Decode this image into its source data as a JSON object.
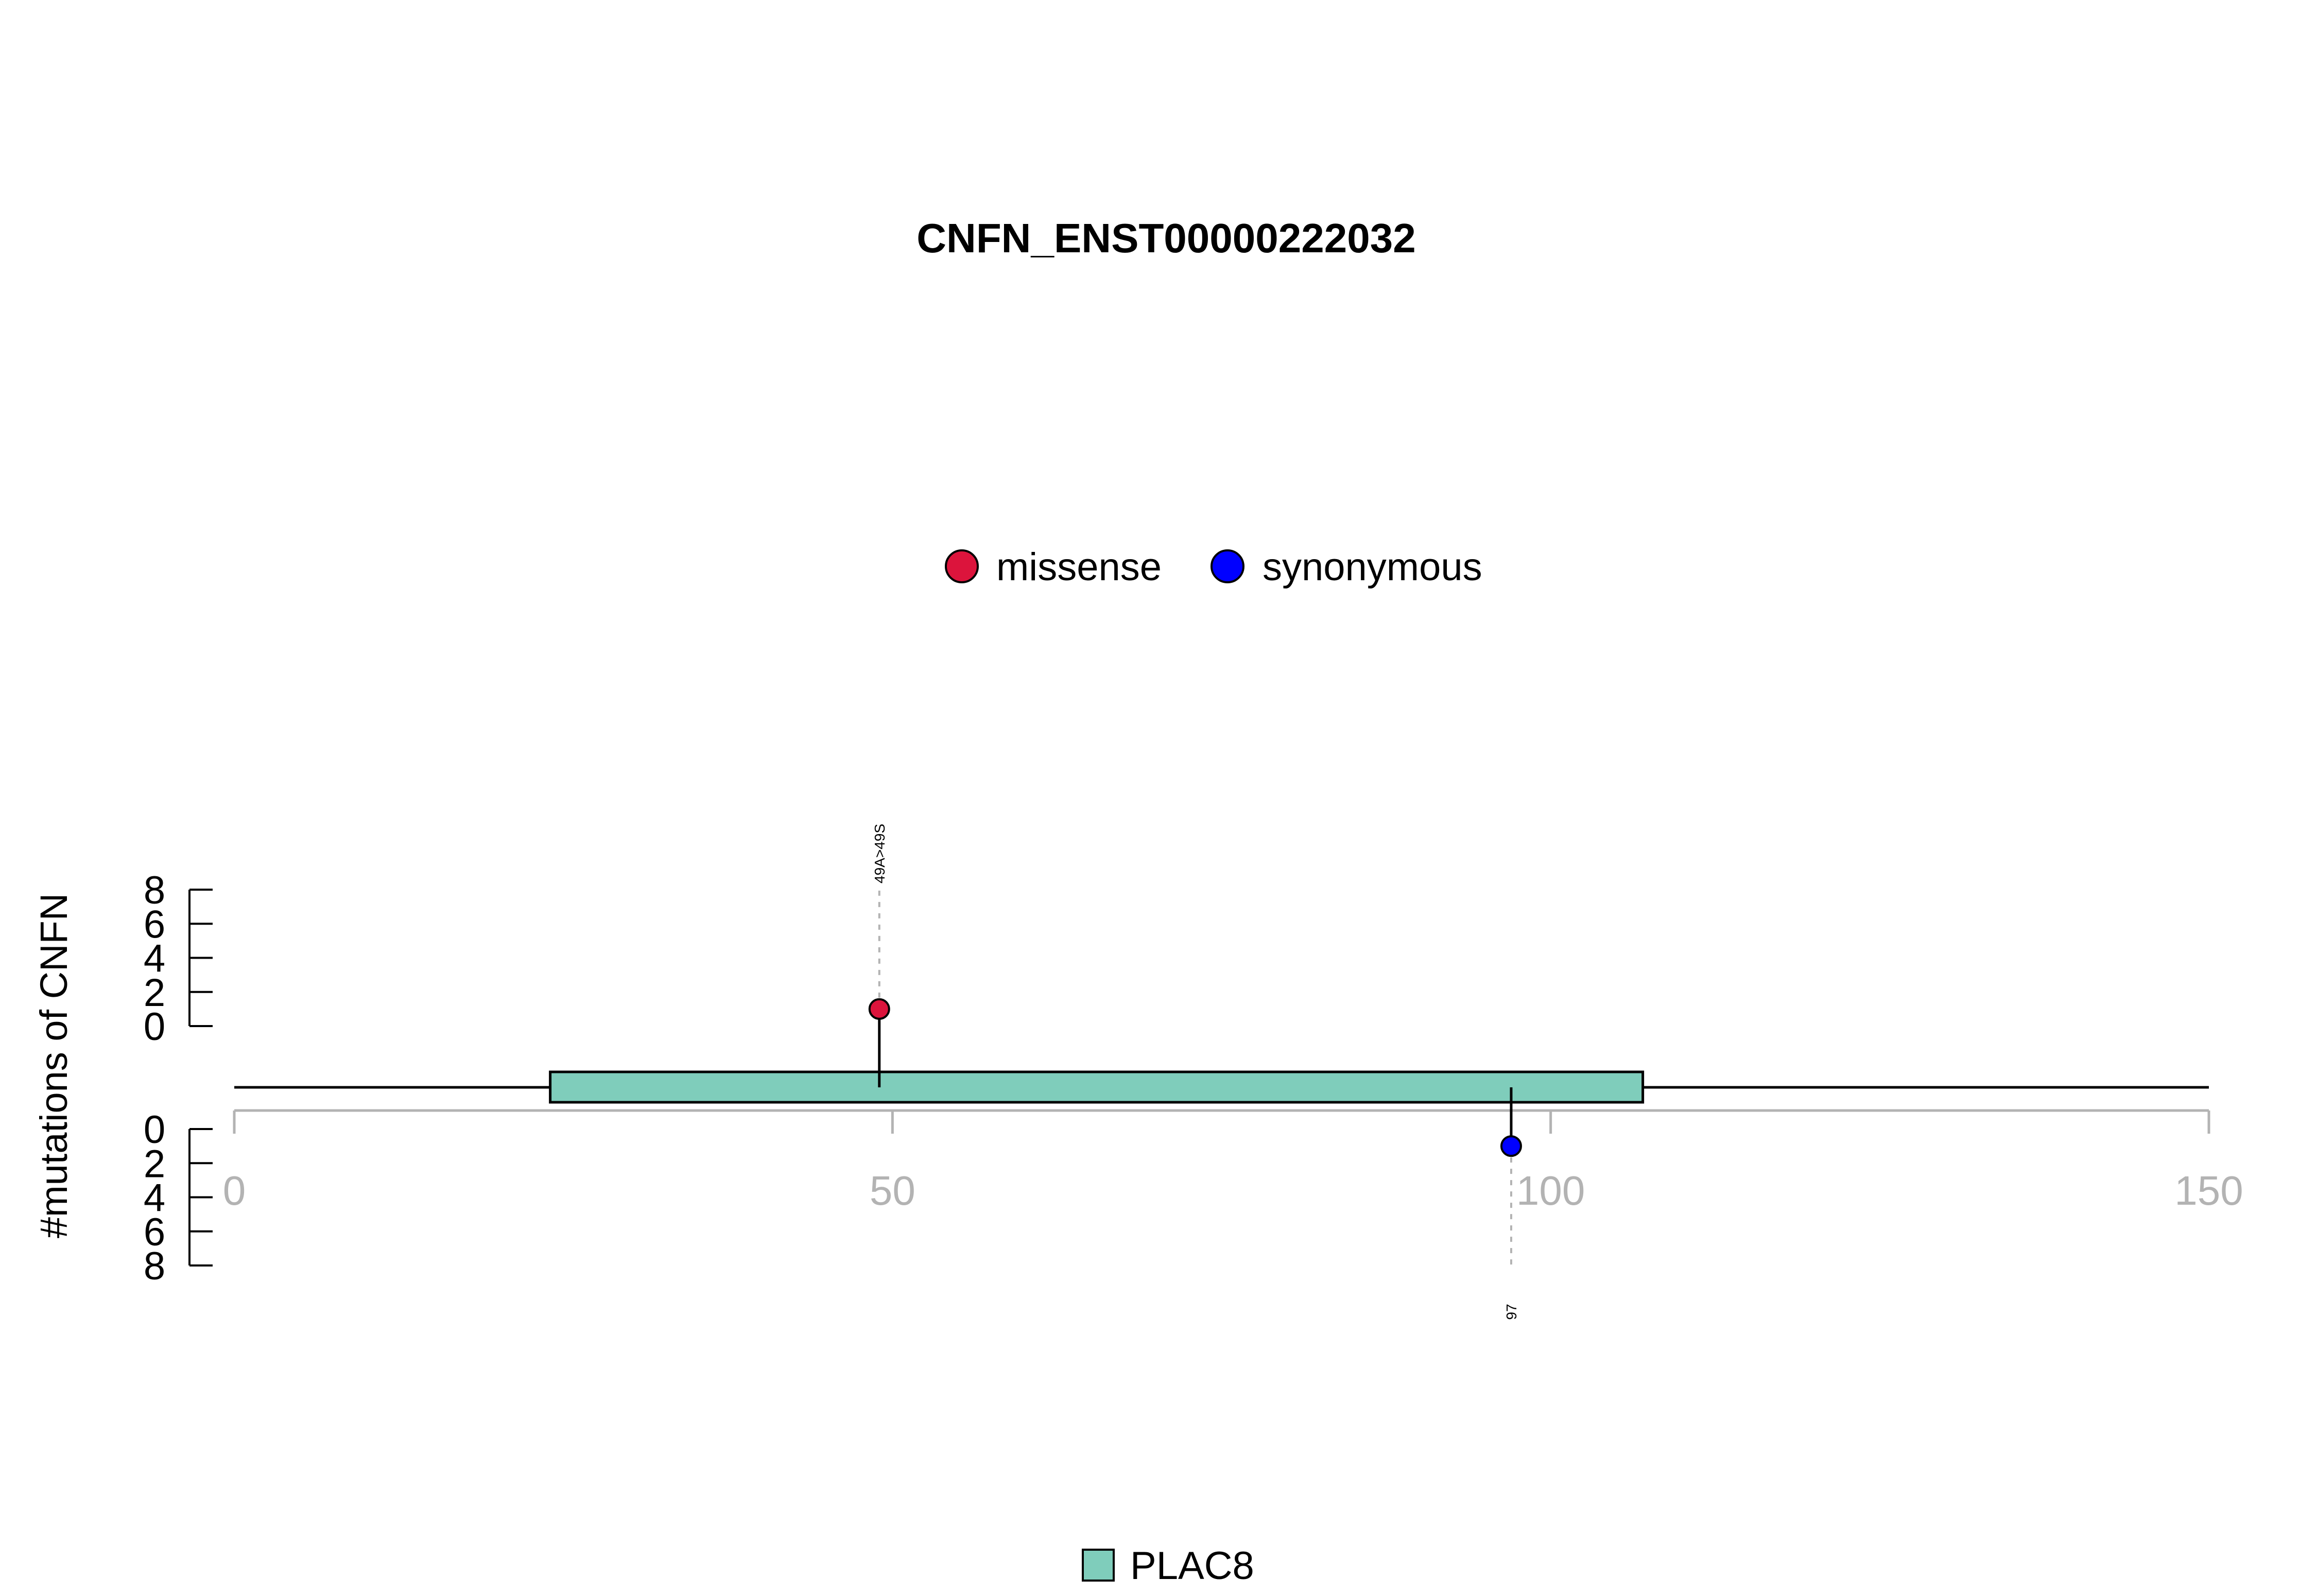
{
  "chart_data": {
    "type": "lollipop",
    "title": "CNFN_ENST00000222032",
    "ylabel": "#mutations of CNFN",
    "xlim": [
      0,
      150
    ],
    "xticks": [
      0,
      50,
      100,
      150
    ],
    "ylim": [
      0,
      8
    ],
    "yticks": [
      0,
      2,
      4,
      6,
      8
    ],
    "protein_length": 150,
    "domains": [
      {
        "name": "PLAC8",
        "start": 24,
        "end": 107,
        "color": "#7FCDBB"
      }
    ],
    "legend_top": [
      {
        "label": "missense",
        "color": "#DC143C"
      },
      {
        "label": "synonymous",
        "color": "#0000FF"
      }
    ],
    "legend_bottom": [
      {
        "label": "PLAC8",
        "color": "#7FCDBB"
      }
    ],
    "mutations": [
      {
        "position": 49,
        "count": 1,
        "type": "missense",
        "label": "49A>49S",
        "side": "top",
        "color": "#DC143C"
      },
      {
        "position": 97,
        "count": 1,
        "type": "synonymous",
        "label": "97",
        "side": "bottom",
        "color": "#0000FF"
      }
    ],
    "grid": false
  }
}
